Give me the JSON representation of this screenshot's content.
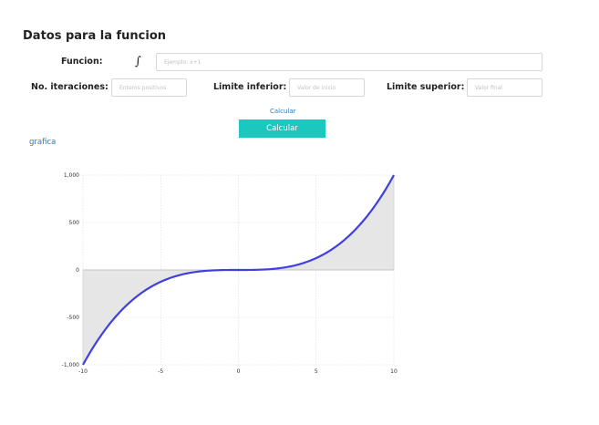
{
  "form": {
    "title": "Datos para la funcion",
    "funcion_label": "Funcion:",
    "integral_symbol": "∫",
    "funcion_placeholder": "Ejemplo: x+1",
    "iteraciones_label": "No. iteraciones:",
    "iteraciones_placeholder": "Enteros positivos",
    "limite_inferior_label": "Limite inferior:",
    "limite_inferior_placeholder": "Valor de inicio",
    "limite_superior_label": "Limite superior:",
    "limite_superior_placeholder": "Valor final",
    "calcular_link": "Calcular",
    "calcular_button": "Calcular",
    "grafica_link": "grafica"
  },
  "colors": {
    "accent": "#1ac8c0",
    "link": "#337ab7",
    "curve": "#4040e0",
    "fill": "#e6e6e6"
  },
  "chart_data": {
    "type": "area",
    "function": "x^3",
    "x": [
      -10,
      -9,
      -8,
      -7,
      -6,
      -5,
      -4,
      -3,
      -2,
      -1,
      0,
      1,
      2,
      3,
      4,
      5,
      6,
      7,
      8,
      9,
      10
    ],
    "y": [
      -1000,
      -729,
      -512,
      -343,
      -216,
      -125,
      -64,
      -27,
      -8,
      -1,
      0,
      1,
      8,
      27,
      64,
      125,
      216,
      343,
      512,
      729,
      1000
    ],
    "xlim": [
      -10,
      10
    ],
    "ylim": [
      -1000,
      1000
    ],
    "x_ticks": [
      -10,
      -5,
      0,
      5,
      10
    ],
    "x_tick_labels": [
      "-10",
      "-5",
      "0",
      "5",
      "10"
    ],
    "y_ticks": [
      1000,
      500,
      0,
      -500,
      -1000
    ],
    "y_tick_labels": [
      "1,000",
      "500",
      "0",
      "-500",
      "-1,000"
    ],
    "grid": true,
    "fill_to_zero": true
  }
}
